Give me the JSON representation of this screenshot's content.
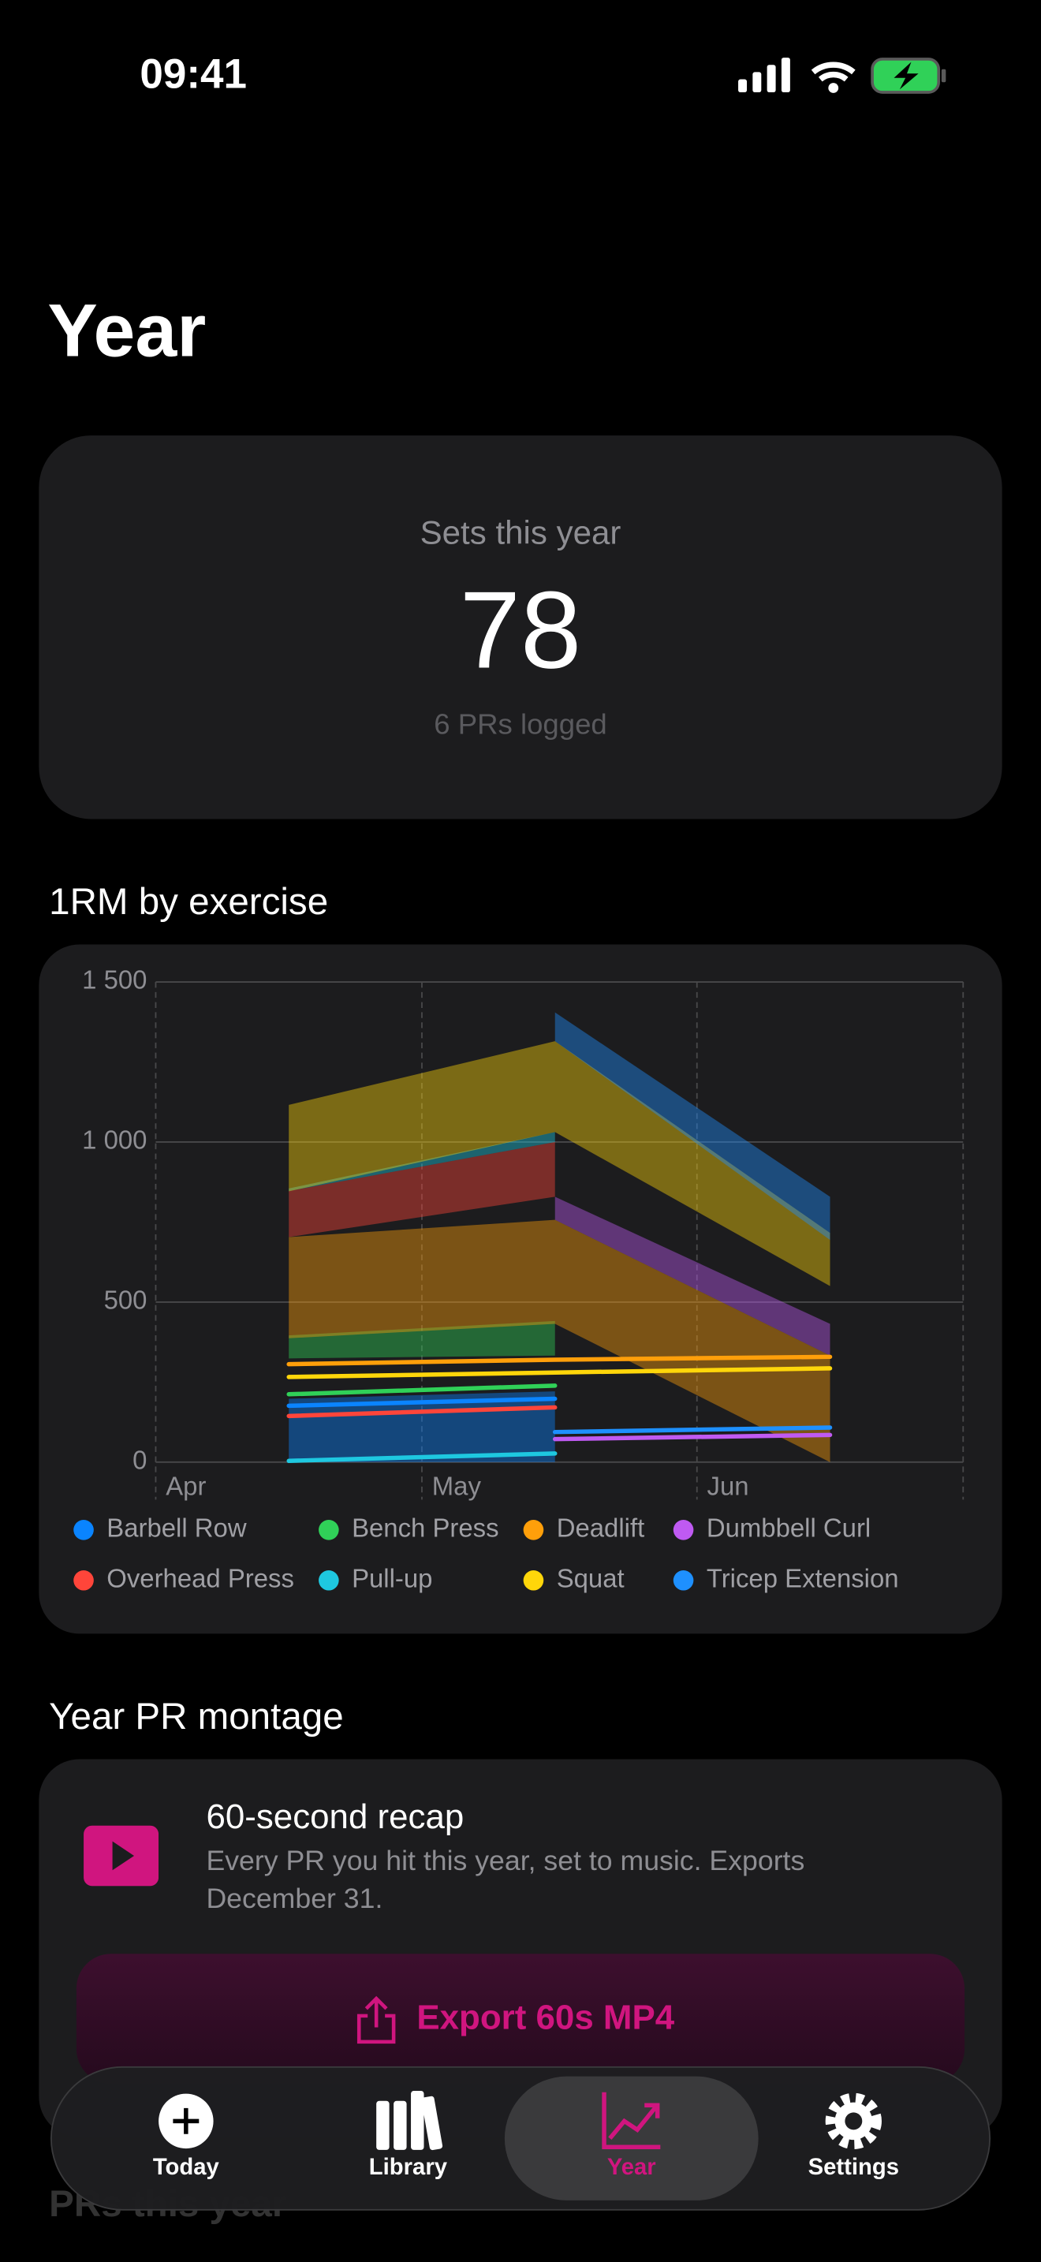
{
  "status_bar": {
    "time": "09:41"
  },
  "header": {
    "title": "Year"
  },
  "summary": {
    "label": "Sets this year",
    "value": "78",
    "note": "6 PRs logged"
  },
  "sections": [
    "1RM by exercise",
    "Year PR montage",
    "PRs this year"
  ],
  "montage": {
    "title": "60-second recap",
    "description": "Every PR you hit this year, set to music. Exports December 31.",
    "button": "Export 60s MP4"
  },
  "tabs": [
    "Today",
    "Library",
    "Year",
    "Settings"
  ],
  "chart_data": {
    "type": "line",
    "grid": true,
    "x": [
      15,
      45,
      76
    ],
    "xlim": [
      0,
      91
    ],
    "xticks": [
      {
        "value": 0,
        "label": "Apr"
      },
      {
        "value": 30,
        "label": "May"
      },
      {
        "value": 61,
        "label": "Jun"
      }
    ],
    "ylim": [
      0,
      1500
    ],
    "yticks": [
      0,
      500,
      {
        "value": 1000,
        "label": "1 000"
      },
      {
        "value": 1500,
        "label": "1 500"
      }
    ],
    "series": [
      {
        "name": "Barbell Row",
        "color": "#0a84ff",
        "values": [
          176,
          198,
          null
        ],
        "band_low": [
          0,
          0,
          null
        ],
        "band_high": [
          198,
          221,
          null
        ]
      },
      {
        "name": "Bench Press",
        "color": "#30d158",
        "values": [
          212,
          239,
          null
        ],
        "band_low": [
          324,
          333,
          null
        ],
        "band_high": [
          396,
          441,
          null
        ]
      },
      {
        "name": "Deadlift",
        "color": "#ff9f0a",
        "values": [
          306,
          320,
          329
        ],
        "band_low": [
          387,
          432,
          0
        ],
        "band_high": [
          703,
          757,
          333
        ]
      },
      {
        "name": "Dumbbell Curl",
        "color": "#bf5af2",
        "values": [
          null,
          72,
          85
        ],
        "band_low": [
          null,
          757,
          333
        ],
        "band_high": [
          null,
          829,
          432
        ]
      },
      {
        "name": "Overhead Press",
        "color": "#ff453a",
        "values": [
          144,
          171,
          null
        ],
        "band_low": [
          703,
          829,
          null
        ],
        "band_high": [
          847,
          1000,
          null
        ]
      },
      {
        "name": "Pull-up",
        "color": "#1ec8e0",
        "values": [
          4,
          27,
          null
        ],
        "band_low": [
          847,
          1000,
          null
        ],
        "band_high": [
          855,
          1031,
          null
        ]
      },
      {
        "name": "Squat",
        "color": "#ffd60a",
        "values": [
          266,
          280,
          293
        ],
        "band_low": [
          846,
          1031,
          550
        ],
        "band_high": [
          1116,
          1315,
          716
        ]
      },
      {
        "name": "Tricep Extension",
        "color": "#1e90ff",
        "values": [
          null,
          94,
          108
        ],
        "band_low": [
          null,
          1315,
          694
        ],
        "band_high": [
          null,
          1405,
          829
        ]
      }
    ]
  }
}
